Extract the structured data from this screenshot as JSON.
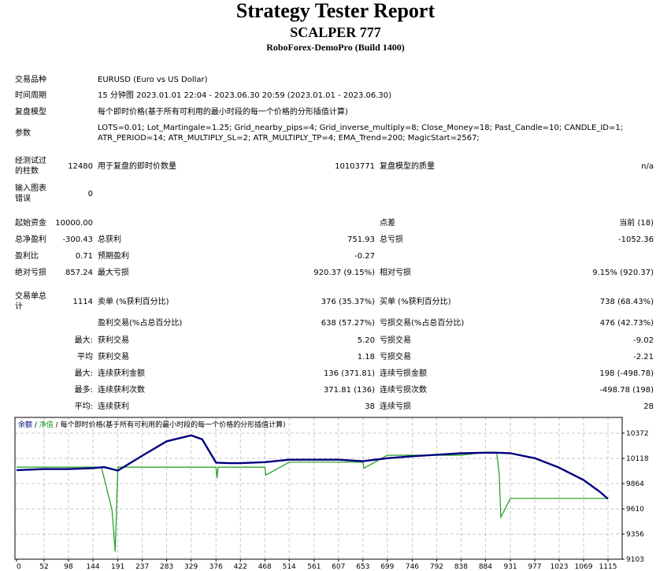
{
  "header": {
    "title": "Strategy Tester Report",
    "expert": "SCALPER 777",
    "server": "RoboForex-DemoPro (Build 1400)"
  },
  "settings": {
    "symbol_label": "交易品种",
    "symbol_value": "EURUSD (Euro vs US Dollar)",
    "period_label": "时间周期",
    "period_value": "15 分钟图 2023.01.01 22:04 - 2023.06.30 20:59 (2023.01.01 - 2023.06.30)",
    "model_label": "复盘模型",
    "model_value": "每个即时价格(基于所有可利用的最小时段的每一个价格的分形插值计算)",
    "params_label": "参数",
    "params_line1": "LOTS=0.01; Lot_Martingale=1.25; Grid_nearby_pips=4; Grid_inverse_multiply=8; Close_Money=18; Past_Candle=10; CANDLE_ID=1;",
    "params_line2": "ATR_PERIOD=14; ATR_MULTIPLY_SL=2; ATR_MULTIPLY_TP=4; EMA_Trend=200; MagicStart=2567;"
  },
  "bars": {
    "bars_label_1": "经测试过",
    "bars_label_2": "的柱数",
    "bars_value": "12480",
    "ticks_label": "用于复盘的即时价数量",
    "ticks_value": "10103771",
    "quality_label": "复盘模型的质量",
    "quality_value": "n/a",
    "errors_label_1": "输入图表",
    "errors_label_2": "错误",
    "errors_value": "0"
  },
  "results": {
    "deposit_label": "起始资金",
    "deposit_value": "10000.00",
    "spread_label": "点差",
    "spread_value": "当前 (18)",
    "net_profit_label": "总净盈利",
    "net_profit_value": "-300.43",
    "gross_profit_label": "总获利",
    "gross_profit_value": "751.93",
    "gross_loss_label": "总亏损",
    "gross_loss_value": "-1052.36",
    "profit_factor_label": "盈利比",
    "profit_factor_value": "0.71",
    "expected_payoff_label": "预期盈利",
    "expected_payoff_value": "-0.27",
    "abs_drawdown_label": "绝对亏损",
    "abs_drawdown_value": "857.24",
    "max_drawdown_label": "最大亏损",
    "max_drawdown_value": "920.37 (9.15%)",
    "rel_drawdown_label": "相对亏损",
    "rel_drawdown_value": "9.15% (920.37)"
  },
  "trades": {
    "total_label_1": "交易单总",
    "total_label_2": "计",
    "total_value": "1114",
    "short_label": "卖单 (%获利百分比)",
    "short_value": "376 (35.37%)",
    "long_label": "买单 (%获利百分比)",
    "long_value": "738 (68.43%)",
    "profit_trades_label": "盈利交易(%占总百分比)",
    "profit_trades_value": "638 (57.27%)",
    "loss_trades_label": "亏损交易(%占总百分比)",
    "loss_trades_value": "476 (42.73%)",
    "largest_prefix": "最大:",
    "largest_profit_label": "获利交易",
    "largest_profit_value": "5.20",
    "largest_loss_label": "亏损交易",
    "largest_loss_value": "-9.02",
    "average_prefix": "平均",
    "average_profit_label": "获利交易",
    "average_profit_value": "1.18",
    "average_loss_label": "亏损交易",
    "average_loss_value": "-2.21",
    "max_cons_prefix": "最大:",
    "max_cons_wins_label": "连续获利金额",
    "max_cons_wins_value": "136 (371.81)",
    "max_cons_losses_label": "连续亏损金额",
    "max_cons_losses_value": "198 (-498.78)",
    "maximal_prefix": "最多:",
    "maximal_cons_profit_label": "连续获利次数",
    "maximal_cons_profit_value": "371.81 (136)",
    "maximal_cons_loss_label": "连续亏损次数",
    "maximal_cons_loss_value": "-498.78 (198)",
    "avg_cons_prefix": "平均:",
    "avg_cons_wins_label": "连续获利",
    "avg_cons_wins_value": "38",
    "avg_cons_losses_label": "连续亏损",
    "avg_cons_losses_value": "28"
  },
  "chart_legend": {
    "balance": "余额",
    "sep1": " / ",
    "equity": "净值",
    "sep2": " / ",
    "model": "每个即时价格(基于所有可利用的最小时段的每一个价格的分形插值计算)"
  },
  "colors": {
    "balance_line": "#00007f",
    "equity_line": "#1a9a1a",
    "grid": "#c8c8c8",
    "legend_balance": "#00007f",
    "legend_equity": "#1a9a1a"
  },
  "chart_data": {
    "type": "line",
    "title": "余额 / 净值 / 每个即时价格(基于所有可利用的最小时段的每一个价格的分形插值计算)",
    "xlabel": "",
    "ylabel": "",
    "x_ticks": [
      0,
      52,
      98,
      144,
      191,
      237,
      283,
      329,
      376,
      422,
      468,
      514,
      561,
      607,
      653,
      699,
      746,
      792,
      838,
      884,
      931,
      977,
      1023,
      1069,
      1115
    ],
    "y_ticks": [
      10372,
      10118,
      9864,
      9610,
      9356,
      9103
    ],
    "ylim": [
      9103,
      10450
    ],
    "xlim": [
      0,
      1135
    ],
    "grid": true,
    "legend_position": "top-left",
    "series": [
      {
        "name": "余额",
        "color": "#00007f",
        "x": [
          0,
          52,
          98,
          144,
          165,
          191,
          237,
          283,
          329,
          350,
          376,
          400,
          422,
          468,
          514,
          561,
          607,
          653,
          699,
          746,
          792,
          838,
          884,
          905,
          931,
          977,
          1023,
          1069,
          1100,
          1115
        ],
        "y": [
          10000,
          10010,
          10010,
          10020,
          10030,
          9995,
          10145,
          10290,
          10350,
          10310,
          10075,
          10070,
          10070,
          10080,
          10105,
          10105,
          10105,
          10090,
          10120,
          10140,
          10155,
          10170,
          10175,
          10175,
          10170,
          10120,
          10025,
          9900,
          9780,
          9710
        ]
      },
      {
        "name": "净值",
        "color": "#1a9a1a",
        "x": [
          0,
          52,
          98,
          144,
          160,
          180,
          186,
          191,
          237,
          283,
          329,
          376,
          378,
          380,
          422,
          468,
          470,
          514,
          561,
          607,
          653,
          655,
          699,
          746,
          792,
          838,
          884,
          905,
          910,
          913,
          931,
          977,
          1023,
          1069,
          1115
        ],
        "y": [
          10030,
          10030,
          10030,
          10030,
          10030,
          9600,
          9180,
          10030,
          10030,
          10030,
          10030,
          10030,
          9920,
          10030,
          10030,
          10030,
          9950,
          10080,
          10080,
          10080,
          10080,
          10020,
          10150,
          10150,
          10150,
          10150,
          10180,
          10180,
          9960,
          9525,
          9715,
          9715,
          9715,
          9715,
          9715
        ]
      }
    ]
  }
}
